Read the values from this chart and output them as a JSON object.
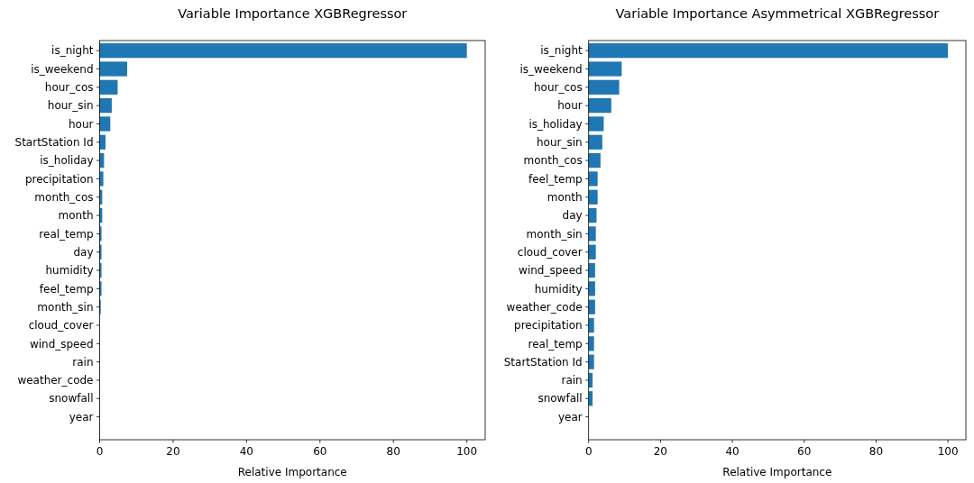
{
  "chart_data": [
    {
      "type": "bar",
      "orientation": "horizontal",
      "title": "Variable Importance XGBRegressor",
      "xlabel": "Relative Importance",
      "categories": [
        "is_night",
        "is_weekend",
        "hour_cos",
        "hour_sin",
        "hour",
        "StartStation Id",
        "is_holiday",
        "precipitation",
        "month_cos",
        "month",
        "real_temp",
        "day",
        "humidity",
        "feel_temp",
        "month_sin",
        "cloud_cover",
        "wind_speed",
        "rain",
        "weather_code",
        "snowfall",
        "year"
      ],
      "values": [
        100,
        7.5,
        4.9,
        3.3,
        2.9,
        1.6,
        1.2,
        1.0,
        0.7,
        0.7,
        0.5,
        0.5,
        0.5,
        0.5,
        0.3,
        0,
        0,
        0,
        0,
        0,
        0
      ],
      "color": "#1f77b4",
      "xlim": [
        0,
        105
      ],
      "xticks": [
        0,
        20,
        40,
        60,
        80,
        100
      ],
      "grid": false
    },
    {
      "type": "bar",
      "orientation": "horizontal",
      "title": "Variable Importance Asymmetrical XGBRegressor",
      "xlabel": "Relative Importance",
      "categories": [
        "is_night",
        "is_weekend",
        "hour_cos",
        "hour",
        "is_holiday",
        "hour_sin",
        "month_cos",
        "feel_temp",
        "month",
        "day",
        "month_sin",
        "cloud_cover",
        "wind_speed",
        "humidity",
        "weather_code",
        "precipitation",
        "real_temp",
        "StartStation Id",
        "rain",
        "snowfall",
        "year"
      ],
      "values": [
        100,
        9.2,
        8.5,
        6.3,
        4.2,
        3.8,
        3.3,
        2.5,
        2.5,
        2.2,
        2.0,
        2.0,
        1.8,
        1.8,
        1.8,
        1.5,
        1.5,
        1.5,
        1.1,
        1.1,
        0
      ],
      "color": "#1f77b4",
      "xlim": [
        0,
        105
      ],
      "xticks": [
        0,
        20,
        40,
        60,
        80,
        100
      ],
      "grid": false
    }
  ]
}
